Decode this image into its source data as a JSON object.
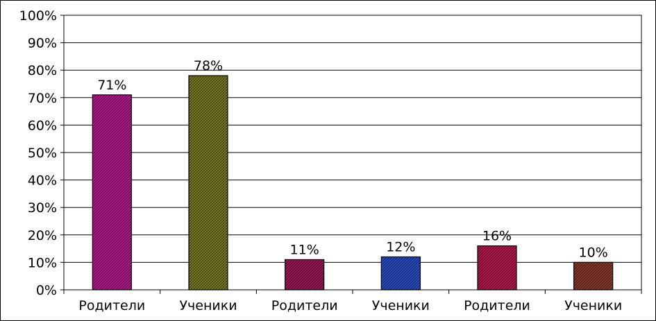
{
  "chart_data": {
    "type": "bar",
    "categories": [
      "Родители",
      "Ученики",
      "Родители",
      "Ученики",
      "Родители",
      "Ученики"
    ],
    "values": [
      71,
      78,
      11,
      12,
      16,
      10
    ],
    "value_labels": [
      "71%",
      "78%",
      "11%",
      "12%",
      "16%",
      "10%"
    ],
    "bar_colors": [
      "#b8198f",
      "#7a7a22",
      "#a0175a",
      "#2a4fc7",
      "#b8174f",
      "#8a3a2a"
    ],
    "yticks": [
      "0%",
      "10%",
      "20%",
      "30%",
      "40%",
      "50%",
      "60%",
      "70%",
      "80%",
      "90%",
      "100%"
    ],
    "ylim": [
      0,
      100
    ],
    "title": "",
    "xlabel": "",
    "ylabel": "",
    "grid": true,
    "legend": "none"
  }
}
